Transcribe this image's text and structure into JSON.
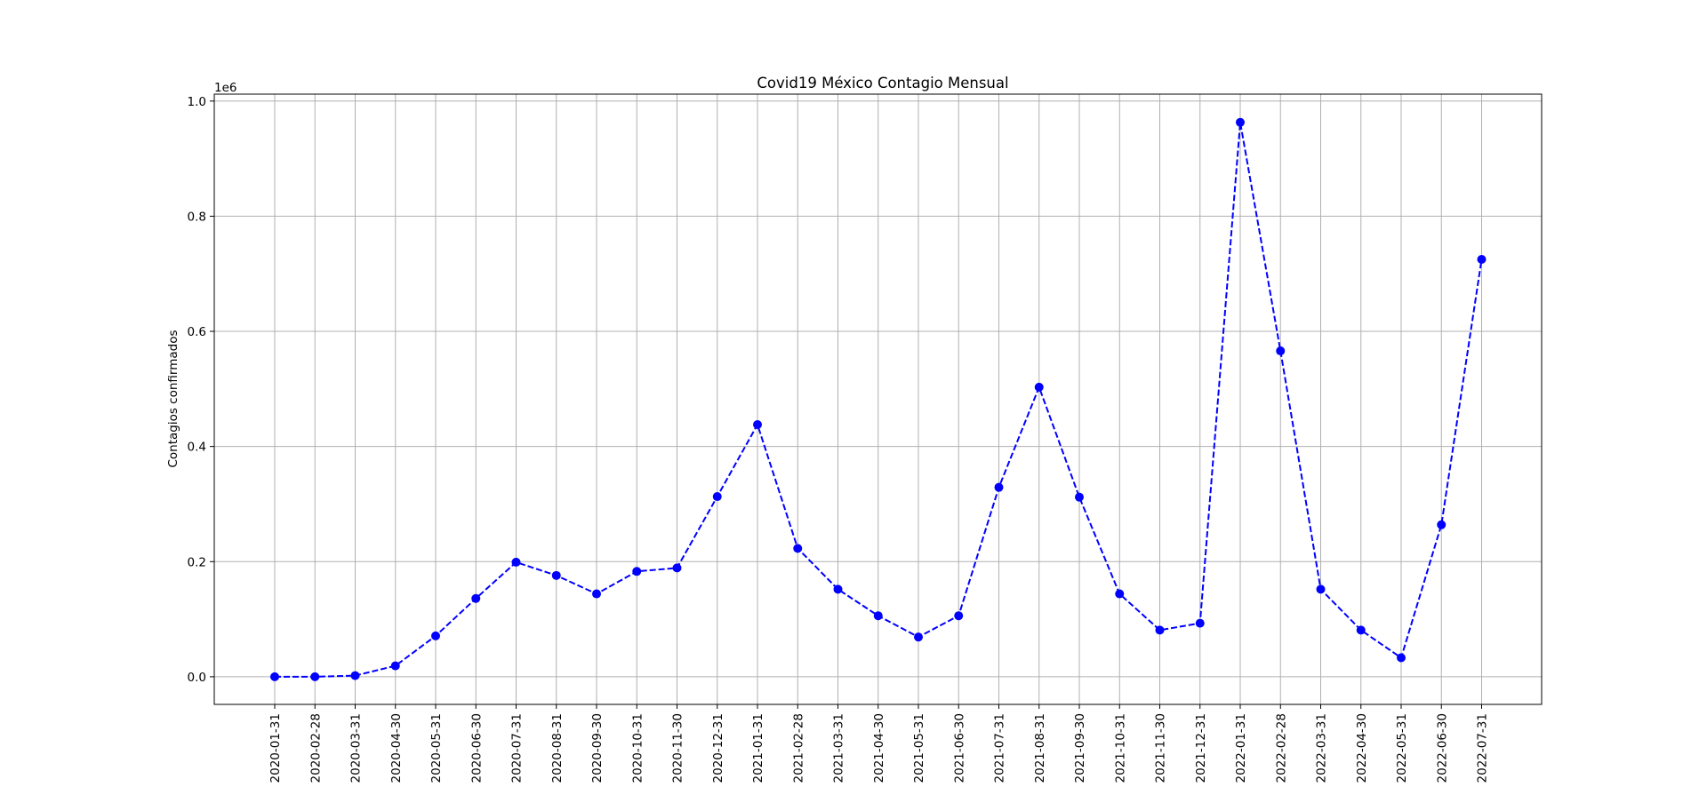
{
  "chart_data": {
    "type": "line",
    "title": "Covid19 México Contagio Mensual",
    "xlabel": "",
    "ylabel": "Contagios confirmados",
    "y_multiplier_label": "1e6",
    "y_multiplier": 1000000,
    "ylim": [
      -0.048,
      1.012
    ],
    "yticks": [
      0.0,
      0.2,
      0.4,
      0.6,
      0.8,
      1.0
    ],
    "ytick_labels": [
      "0.0",
      "0.2",
      "0.4",
      "0.6",
      "0.8",
      "1.0"
    ],
    "grid": true,
    "line_style": "dashed",
    "marker": "circle",
    "series_color": "#0000ff",
    "categories": [
      "2020-01-31",
      "2020-02-28",
      "2020-03-31",
      "2020-04-30",
      "2020-05-31",
      "2020-06-30",
      "2020-07-31",
      "2020-08-31",
      "2020-09-30",
      "2020-10-31",
      "2020-11-30",
      "2020-12-31",
      "2021-01-31",
      "2021-02-28",
      "2021-03-31",
      "2021-04-30",
      "2021-05-31",
      "2021-06-30",
      "2021-07-31",
      "2021-08-31",
      "2021-09-30",
      "2021-10-31",
      "2021-11-30",
      "2021-12-31",
      "2022-01-31",
      "2022-02-28",
      "2022-03-31",
      "2022-04-30",
      "2022-05-31",
      "2022-06-30",
      "2022-07-31"
    ],
    "values": [
      0.0,
      0.0,
      0.002,
      0.019,
      0.071,
      0.136,
      0.199,
      0.176,
      0.144,
      0.183,
      0.189,
      0.313,
      0.438,
      0.223,
      0.152,
      0.106,
      0.069,
      0.106,
      0.329,
      0.503,
      0.312,
      0.144,
      0.081,
      0.093,
      0.963,
      0.566,
      0.152,
      0.081,
      0.033,
      0.264,
      0.725
    ]
  }
}
